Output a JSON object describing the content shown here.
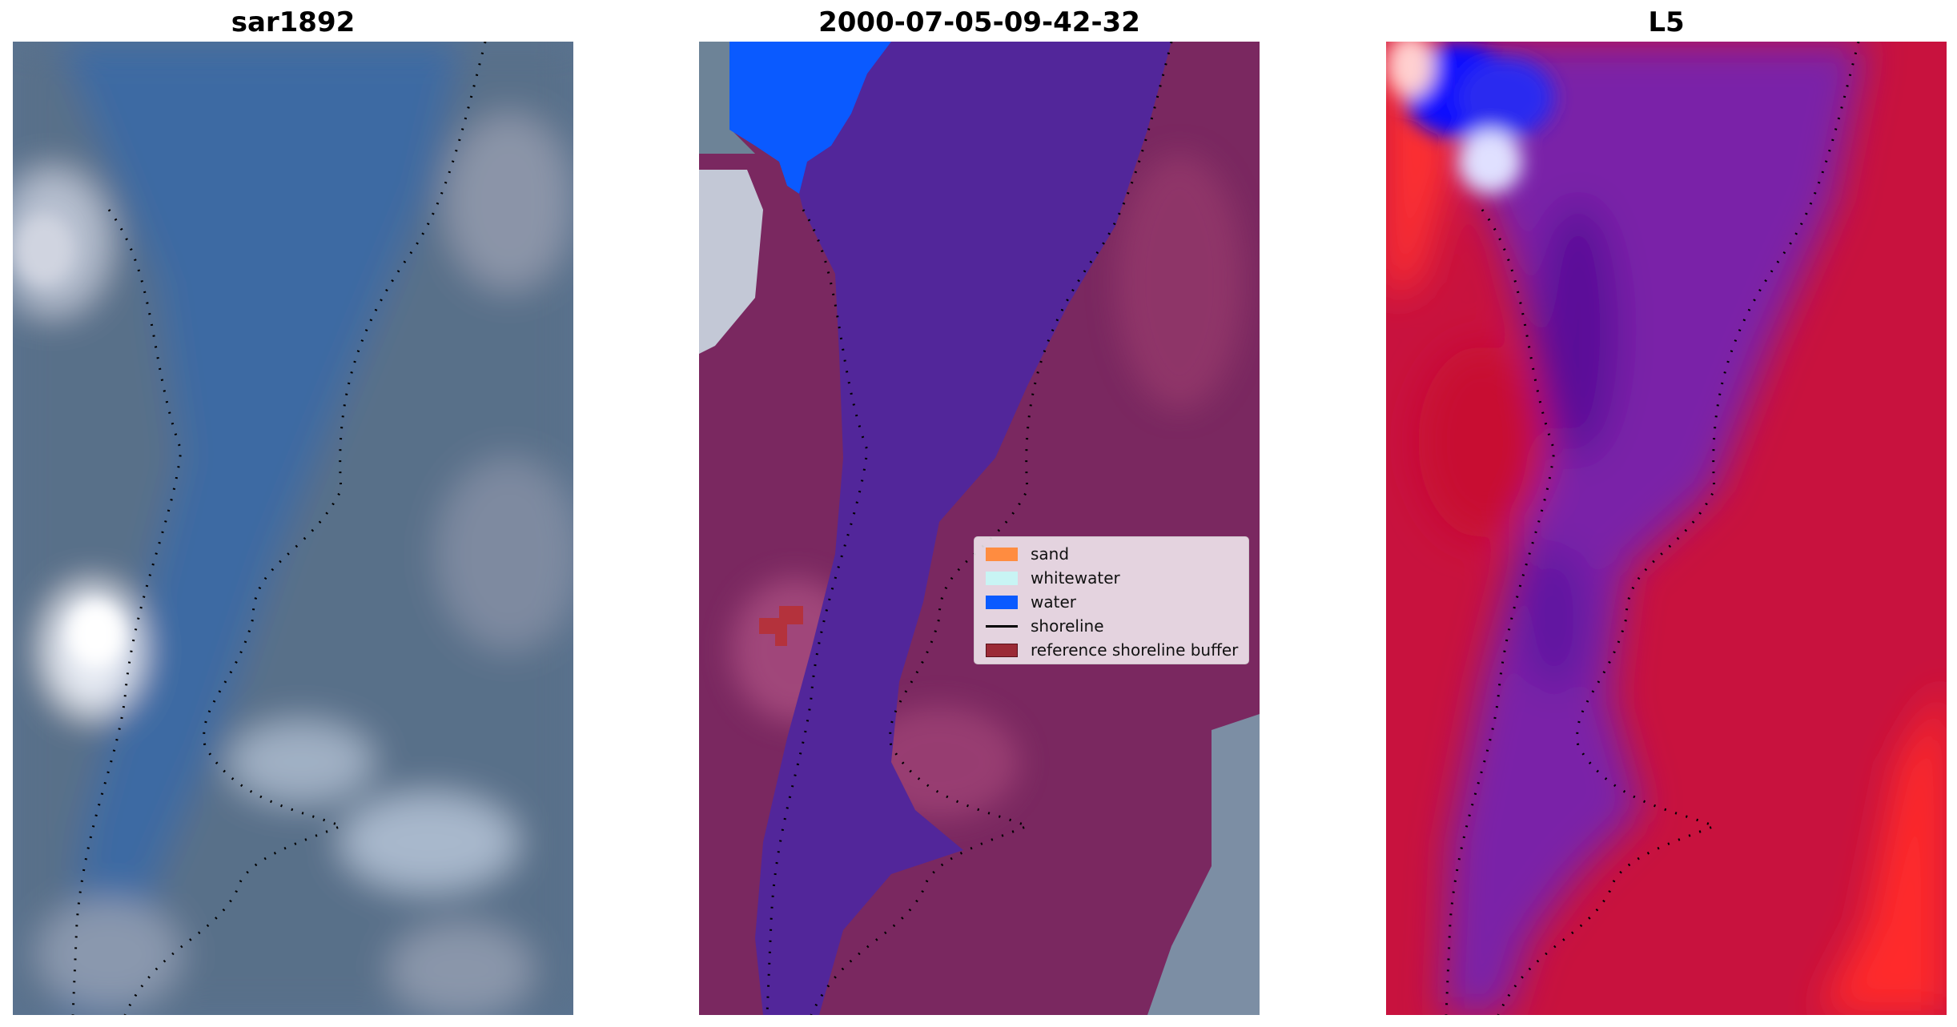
{
  "panels": [
    {
      "title": "sar1892"
    },
    {
      "title": "2000-07-05-09-42-32"
    },
    {
      "title": "L5"
    }
  ],
  "legend": {
    "items": [
      {
        "label": "sand",
        "color": "#ff8c40",
        "kind": "patch"
      },
      {
        "label": "whitewater",
        "color": "#c8f4f4",
        "kind": "patch"
      },
      {
        "label": "water",
        "color": "#0a5aff",
        "kind": "patch"
      },
      {
        "label": "shoreline",
        "color": "#000000",
        "kind": "line"
      },
      {
        "label": "reference shoreline buffer",
        "color": "#9b2a36",
        "kind": "patch"
      }
    ]
  },
  "colors": {
    "sat_base": "#4c6b8a",
    "river": "#3d6aa3",
    "land_overlay": "#7a2860",
    "water_class": "#52269a",
    "water_blue": "#0a5aff",
    "index_land": "#c8123e",
    "index_water": "#6a1aa8",
    "index_high": "#ff2424"
  }
}
